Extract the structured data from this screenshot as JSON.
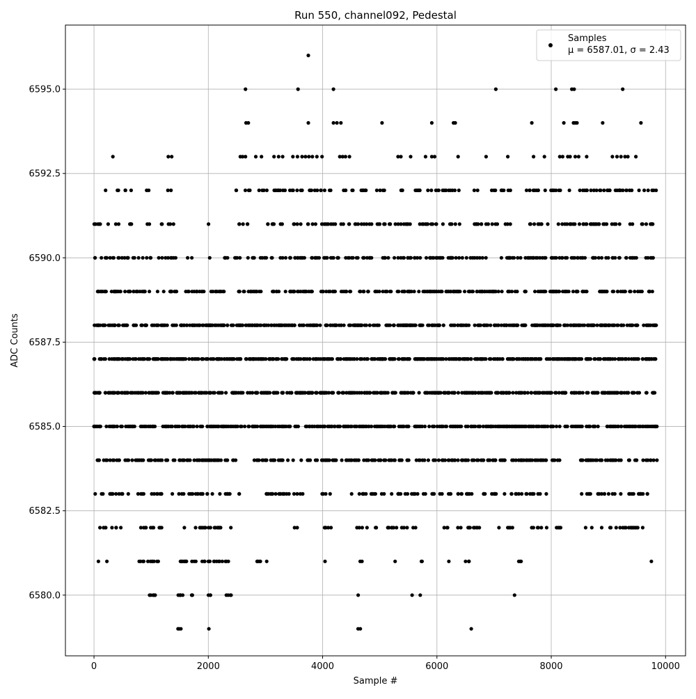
{
  "chart_data": {
    "type": "scatter",
    "title": "Run 550, channel092, Pedestal",
    "xlabel": "Sample #",
    "ylabel": "ADC Counts",
    "xlim": [
      -500,
      10350
    ],
    "ylim": [
      6578.2,
      6596.9
    ],
    "x_ticks": [
      0,
      2000,
      4000,
      6000,
      8000,
      10000
    ],
    "x_tick_labels": [
      "0",
      "2000",
      "4000",
      "6000",
      "8000",
      "10000"
    ],
    "y_ticks": [
      6580.0,
      6582.5,
      6585.0,
      6587.5,
      6590.0,
      6592.5,
      6595.0
    ],
    "y_tick_labels": [
      "6580.0",
      "6582.5",
      "6585.0",
      "6587.5",
      "6590.0",
      "6592.5",
      "6595.0"
    ],
    "grid": true,
    "legend_position": "top-right",
    "legend": {
      "series_label": "Samples",
      "stats_label": "μ = 6587.01, σ = 2.43"
    },
    "marker_color": "#000000",
    "series": [
      {
        "name": "Samples",
        "x_range": [
          0,
          9850
        ],
        "levels": [
          {
            "y": 6596,
            "x": [
              3750
            ]
          },
          {
            "y": 6595,
            "x": [
              2650,
              3570,
              4190,
              7030,
              8080,
              8360,
              8400,
              9250
            ]
          },
          {
            "y": 6594,
            "x": [
              2660,
              2700,
              3750,
              4190,
              4250,
              4320,
              5040,
              5910,
              6290,
              6320,
              7660,
              8220,
              8390,
              8420,
              8450,
              8900,
              9570
            ]
          },
          {
            "y": 6593,
            "x": [
              330,
              1300,
              1360,
              2560,
              2600,
              2650,
              2830,
              2930,
              3150,
              3230,
              3300,
              3480,
              3560,
              3640,
              3700,
              3760,
              3820,
              3900,
              3990,
              4300,
              4350,
              4400,
              4470,
              5320,
              5370,
              5540,
              5800,
              5910,
              5960,
              6370,
              6860,
              7240,
              7690,
              7880,
              8150,
              8200,
              8290,
              8330,
              8420,
              8480,
              8620,
              9070,
              9150,
              9220,
              9290,
              9340,
              9480
            ]
          }
        ],
        "dense_levels": [
          {
            "y": 6592,
            "n": 150,
            "x_spans": [
              [
                190,
                210
              ],
              [
                400,
                680
              ],
              [
                870,
                960
              ],
              [
                1280,
                1360
              ],
              [
                2470,
                2750
              ],
              [
                2840,
                3700
              ],
              [
                3760,
                4760
              ],
              [
                4900,
                5100
              ],
              [
                5330,
                6400
              ],
              [
                6650,
                6750
              ],
              [
                6950,
                7350
              ],
              [
                7550,
                9850
              ]
            ]
          },
          {
            "y": 6591,
            "n": 160,
            "x_spans": [
              [
                0,
                260
              ],
              [
                380,
                700
              ],
              [
                900,
                1000
              ],
              [
                1160,
                1400
              ],
              [
                2000,
                2010
              ],
              [
                2480,
                2700
              ],
              [
                2900,
                3300
              ],
              [
                3480,
                5550
              ],
              [
                5700,
                6450
              ],
              [
                6650,
                7350
              ],
              [
                7600,
                9850
              ]
            ]
          },
          {
            "y": 6590,
            "n": 220,
            "x_spans": [
              [
                0,
                700
              ],
              [
                700,
                1000
              ],
              [
                1130,
                1450
              ],
              [
                1620,
                1720
              ],
              [
                2000,
                2030
              ],
              [
                2200,
                2350
              ],
              [
                2450,
                5600
              ],
              [
                5600,
                8000
              ],
              [
                8000,
                9850
              ]
            ]
          },
          {
            "y": 6589,
            "n": 300,
            "x_spans": [
              [
                0,
                1500
              ],
              [
                1600,
                2300
              ],
              [
                2500,
                9850
              ]
            ]
          },
          {
            "y": 6588,
            "n": 480,
            "x_spans": [
              [
                0,
                9850
              ]
            ]
          },
          {
            "y": 6587,
            "n": 480,
            "x_spans": [
              [
                0,
                9850
              ]
            ]
          },
          {
            "y": 6586,
            "n": 480,
            "x_spans": [
              [
                0,
                9850
              ]
            ]
          },
          {
            "y": 6585,
            "n": 460,
            "x_spans": [
              [
                0,
                9850
              ]
            ]
          },
          {
            "y": 6584,
            "n": 300,
            "x_spans": [
              [
                0,
                2500
              ],
              [
                2800,
                3500
              ],
              [
                3600,
                4500
              ],
              [
                4500,
                8150
              ],
              [
                8500,
                9850
              ]
            ]
          },
          {
            "y": 6583,
            "n": 170,
            "x_spans": [
              [
                0,
                660
              ],
              [
                720,
                1250
              ],
              [
                1350,
                2550
              ],
              [
                2800,
                3700
              ],
              [
                3950,
                4150
              ],
              [
                4500,
                5800
              ],
              [
                5900,
                7200
              ],
              [
                7300,
                8000
              ],
              [
                8500,
                9750
              ]
            ]
          },
          {
            "y": 6582,
            "n": 110,
            "x_spans": [
              [
                50,
                500
              ],
              [
                600,
                1200
              ],
              [
                1400,
                2450
              ],
              [
                3500,
                3600
              ],
              [
                3900,
                4200
              ],
              [
                4600,
                5000
              ],
              [
                5100,
                5800
              ],
              [
                6050,
                6900
              ],
              [
                7050,
                7350
              ],
              [
                7650,
                8250
              ],
              [
                8550,
                9700
              ]
            ]
          },
          {
            "y": 6581,
            "n": 60,
            "x_spans": [
              [
                50,
                80
              ],
              [
                220,
                250
              ],
              [
                780,
                1150
              ],
              [
                1450,
                2250
              ],
              [
                2300,
                2400
              ],
              [
                2850,
                3050
              ],
              [
                4040,
                4050
              ],
              [
                4650,
                4720
              ],
              [
                5240,
                5280
              ],
              [
                5700,
                5750
              ],
              [
                6200,
                6220
              ],
              [
                6480,
                6600
              ],
              [
                7400,
                7500
              ],
              [
                9750,
                9760
              ]
            ]
          },
          {
            "y": 6580,
            "n": 24,
            "x_spans": [
              [
                900,
                1100
              ],
              [
                1430,
                1600
              ],
              [
                1700,
                1800
              ],
              [
                1950,
                2050
              ],
              [
                2250,
                2400
              ],
              [
                4620,
                4640
              ],
              [
                5560,
                5580
              ],
              [
                5700,
                5720
              ],
              [
                7330,
                7370
              ]
            ]
          }
        ],
        "sparse_points_y6579_x": [
          1470,
          1490,
          1520,
          2010,
          4620,
          4660,
          6600
        ]
      }
    ]
  }
}
